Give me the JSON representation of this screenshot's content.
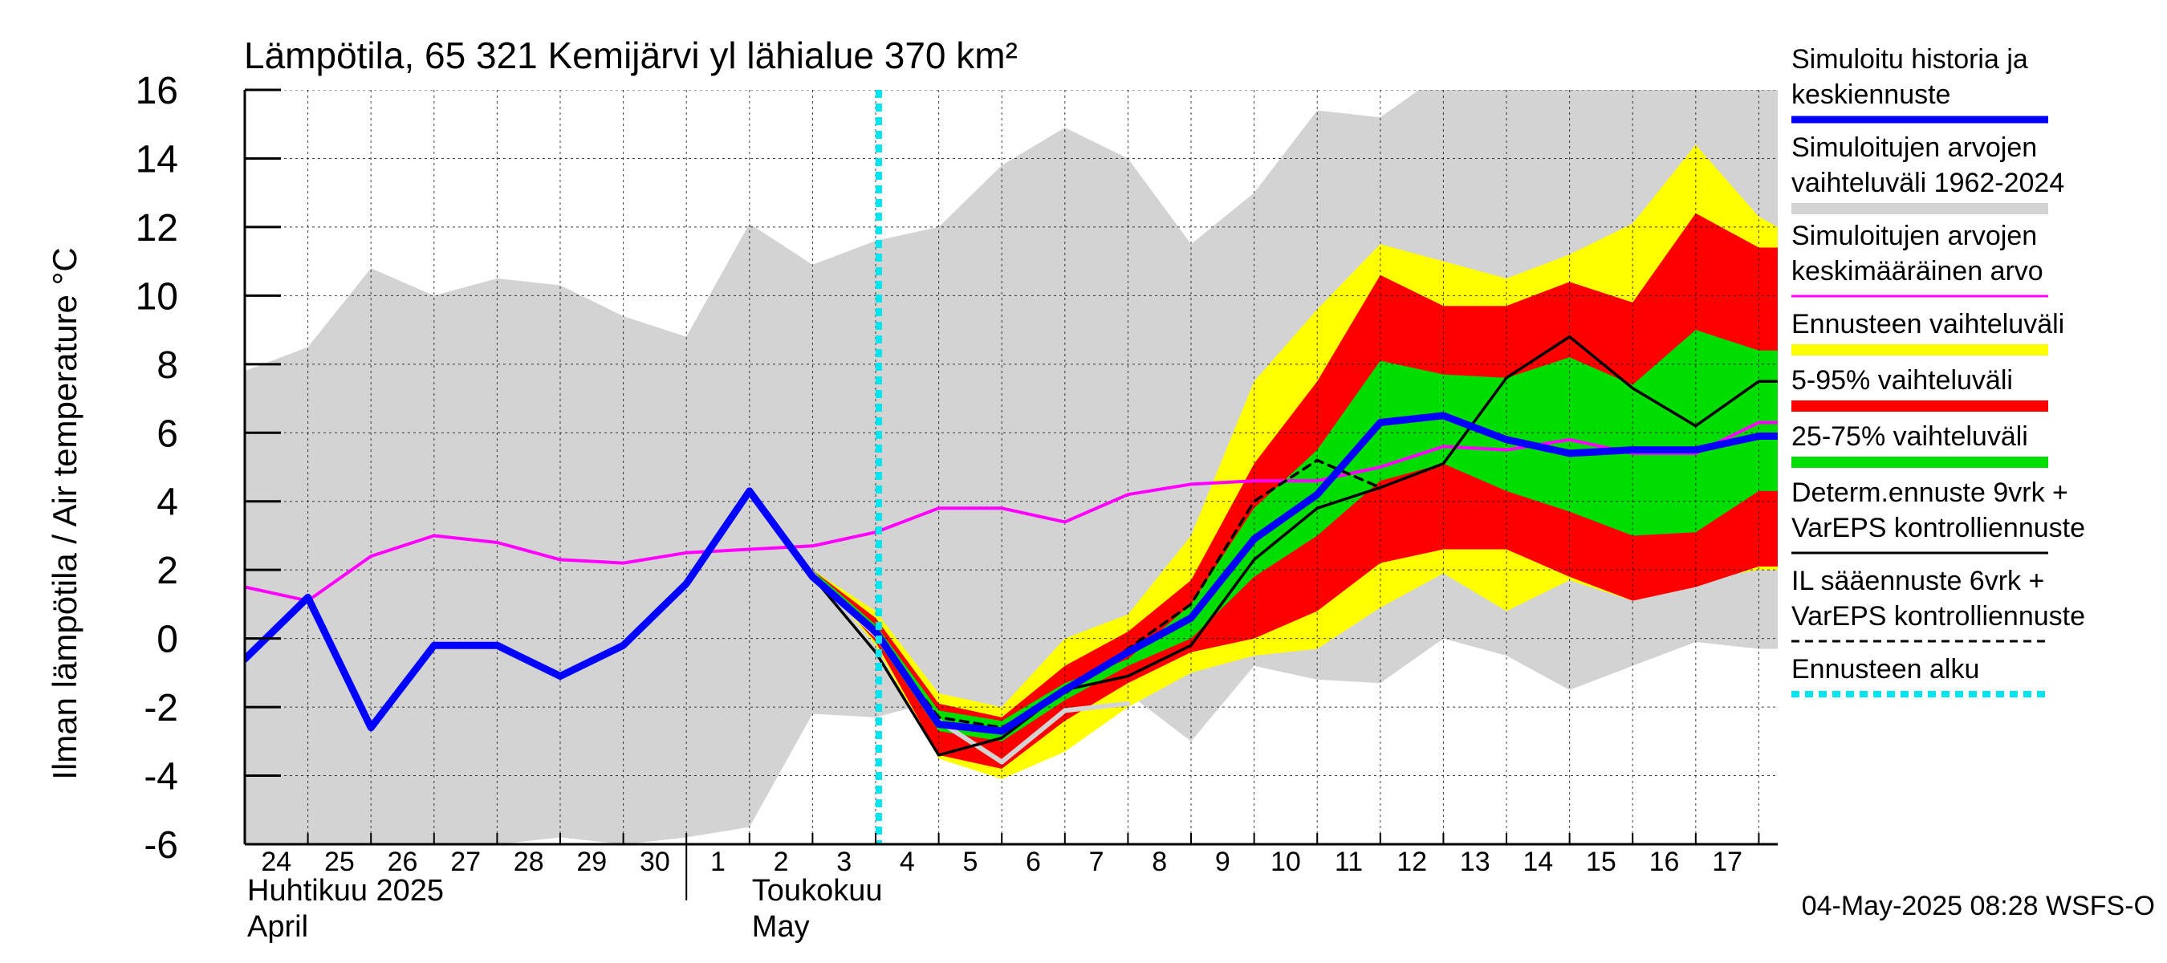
{
  "chart_data": {
    "type": "area",
    "title": "Lämpötila, 65 321 Kemijärvi yl lähialue 370 km²",
    "ylabel": "Ilman lämpötila / Air temperature   °C",
    "ylim": [
      -6,
      16
    ],
    "yticks": [
      -6,
      -4,
      -2,
      0,
      2,
      4,
      6,
      8,
      10,
      12,
      14,
      16
    ],
    "xlim": [
      0,
      24.3
    ],
    "x_day_labels": [
      "24",
      "25",
      "26",
      "27",
      "28",
      "29",
      "30",
      "1",
      "2",
      "3",
      "4",
      "5",
      "6",
      "7",
      "8",
      "9",
      "10",
      "11",
      "12",
      "13",
      "14",
      "15",
      "16",
      "17"
    ],
    "month_labels": [
      {
        "fi": "Huhtikuu  2025",
        "en": "April",
        "x": 0
      },
      {
        "fi": "Toukokuu",
        "en": "May",
        "x": 8
      }
    ],
    "month_divider_x": 7,
    "grid": true,
    "forecast_start_x": 10.05,
    "legend_position": "right",
    "timestamp": "04-May-2025 08:28 WSFS-O",
    "legend": [
      {
        "label": [
          "Simuloitu historia ja",
          "keskiennuste"
        ],
        "color": "#0000ff",
        "style": "thick"
      },
      {
        "label": [
          "Simuloitujen arvojen",
          "vaihteluväli 1962-2024"
        ],
        "color": "#d3d3d3",
        "style": "band"
      },
      {
        "label": [
          "Simuloitujen arvojen",
          "keskimääräinen arvo"
        ],
        "color": "#ff00ff",
        "style": "line"
      },
      {
        "label": [
          "Ennusteen vaihteluväli"
        ],
        "color": "#ffff00",
        "style": "band"
      },
      {
        "label": [
          "5-95% vaihteluväli"
        ],
        "color": "#ff0000",
        "style": "band"
      },
      {
        "label": [
          "25-75% vaihteluväli"
        ],
        "color": "#00dd00",
        "style": "band"
      },
      {
        "label": [
          "Determ.ennuste 9vrk +",
          "VarEPS kontrolliennuste"
        ],
        "color": "#000000",
        "style": "line"
      },
      {
        "label": [
          "IL sääennuste 6vrk  +",
          "  VarEPS kontrolliennuste"
        ],
        "color": "#000000",
        "style": "dashed"
      },
      {
        "label": [
          "Ennusteen alku"
        ],
        "color": "#00e5ee",
        "style": "dotted"
      }
    ],
    "historical_range": {
      "x": [
        0,
        1,
        2,
        3,
        4,
        5,
        6,
        7,
        8,
        9,
        10,
        11,
        12,
        13,
        14,
        15,
        16,
        17,
        18,
        19,
        20,
        21,
        22,
        23,
        24,
        24.3
      ],
      "upper": [
        7.8,
        8.5,
        10.8,
        10,
        10.5,
        10.3,
        9.4,
        8.8,
        12.1,
        10.9,
        11.6,
        12,
        13.8,
        14.9,
        14,
        11.5,
        13,
        15.4,
        15.2,
        16.5,
        16.5,
        16.5,
        16.5,
        16.5,
        16.5,
        16.5
      ],
      "lower": [
        -6,
        -6,
        -6,
        -6,
        -6,
        -5.8,
        -6,
        -5.8,
        -5.5,
        -2.2,
        -2.3,
        -1.8,
        -2.3,
        -2.1,
        -1.6,
        -3,
        -0.8,
        -1.2,
        -1.3,
        0,
        -0.5,
        -1.5,
        -0.8,
        -0.1,
        -0.3,
        -0.3
      ]
    },
    "ensemble_range": {
      "x": [
        9,
        10,
        11,
        12,
        13,
        14,
        15,
        16,
        17,
        18,
        19,
        20,
        21,
        22,
        23,
        24,
        24.3
      ],
      "upper": [
        2,
        0.8,
        -1.6,
        -2,
        0,
        0.7,
        3,
        7.5,
        9.6,
        11.5,
        11,
        10.5,
        11.2,
        12.1,
        14.4,
        12.3,
        12
      ],
      "lower": [
        2,
        -0.2,
        -3.5,
        -4.1,
        -3.3,
        -2,
        -1,
        -0.5,
        -0.3,
        0.9,
        1.9,
        0.8,
        1.7,
        1.1,
        1.7,
        2,
        2
      ]
    },
    "range_5_95": {
      "x": [
        9,
        10,
        11,
        12,
        13,
        14,
        15,
        16,
        17,
        18,
        19,
        20,
        21,
        22,
        23,
        24,
        24.3
      ],
      "upper": [
        2,
        0.6,
        -1.9,
        -2.3,
        -0.8,
        0.2,
        1.7,
        5.1,
        7.5,
        10.6,
        9.7,
        9.7,
        10.4,
        9.8,
        12.4,
        11.4,
        11.4
      ],
      "lower": [
        2,
        -0.1,
        -3.4,
        -3.8,
        -2.4,
        -1.3,
        -0.4,
        0,
        0.8,
        2.2,
        2.6,
        2.6,
        1.8,
        1.1,
        1.5,
        2.1,
        2.1
      ]
    },
    "range_25_75": {
      "x": [
        9,
        10,
        11,
        12,
        13,
        14,
        15,
        16,
        17,
        18,
        19,
        20,
        21,
        22,
        23,
        24,
        24.3
      ],
      "upper": [
        2,
        0.4,
        -2.1,
        -2.4,
        -1.3,
        -0.6,
        1,
        3.8,
        5.5,
        8.1,
        7.7,
        7.6,
        8.2,
        7.4,
        9,
        8.4,
        8.4
      ],
      "lower": [
        2,
        0,
        -2.7,
        -3,
        -1.8,
        -0.8,
        0,
        1.8,
        3,
        4.6,
        5.1,
        4.3,
        3.7,
        3,
        3.1,
        4.3,
        4.3
      ]
    },
    "series": [
      {
        "name": "Simuloitu historia ja keskiennuste",
        "color": "#0000ff",
        "style": "thick",
        "x": [
          0,
          1,
          2,
          3,
          4,
          5,
          6,
          7,
          8,
          9,
          10,
          11,
          12,
          13,
          14,
          15,
          16,
          17,
          18,
          19,
          20,
          21,
          22,
          23,
          24,
          24.3
        ],
        "values": [
          -0.6,
          1.2,
          -2.6,
          -0.2,
          -0.2,
          -1.1,
          -0.2,
          1.6,
          4.3,
          1.8,
          0.2,
          -2.5,
          -2.7,
          -1.5,
          -0.4,
          0.6,
          2.9,
          4.2,
          6.3,
          6.5,
          5.8,
          5.4,
          5.5,
          5.5,
          5.9,
          5.9
        ]
      },
      {
        "name": "Simuloitujen arvojen keskimääräinen arvo",
        "color": "#ff00ff",
        "style": "line",
        "x": [
          0,
          1,
          2,
          3,
          4,
          5,
          6,
          7,
          8,
          9,
          10,
          11,
          12,
          13,
          14,
          15,
          16,
          17,
          18,
          19,
          20,
          21,
          22,
          23,
          24,
          24.3
        ],
        "values": [
          1.5,
          1.1,
          2.4,
          3,
          2.8,
          2.3,
          2.2,
          2.5,
          2.6,
          2.7,
          3.1,
          3.8,
          3.8,
          3.4,
          4.2,
          4.5,
          4.6,
          4.6,
          5,
          5.6,
          5.5,
          5.8,
          5.4,
          5.4,
          6.3,
          6.3
        ]
      },
      {
        "name": "Determ.ennuste 9vrk + VarEPS kontrolliennuste",
        "color": "#000000",
        "style": "line",
        "x": [
          8,
          9,
          10,
          11,
          12,
          13,
          14,
          15,
          16,
          17,
          18,
          19,
          20,
          21,
          22,
          23,
          24,
          24.3
        ],
        "values": [
          4.3,
          1.8,
          -0.4,
          -3.4,
          -2.9,
          -1.5,
          -1.1,
          -0.2,
          2.3,
          3.8,
          4.4,
          5.1,
          7.6,
          8.8,
          7.3,
          6.2,
          7.5,
          7.5
        ]
      },
      {
        "name": "IL sääennuste 6vrk + VarEPS kontrolliennuste",
        "color": "#000000",
        "style": "dashed",
        "x": [
          8,
          9,
          10,
          11,
          12,
          13,
          14,
          15,
          16,
          17,
          18
        ],
        "values": [
          4.3,
          1.8,
          0.1,
          -2.3,
          -2.6,
          -1.6,
          -0.3,
          1,
          4,
          5.2,
          4.4
        ]
      },
      {
        "name": "",
        "color": "#d3d3d3",
        "style": "line",
        "x": [
          9,
          10,
          11,
          12,
          13,
          14
        ],
        "values": [
          1.8,
          0.1,
          -2.4,
          -3.6,
          -2.1,
          -1.9
        ]
      }
    ]
  }
}
